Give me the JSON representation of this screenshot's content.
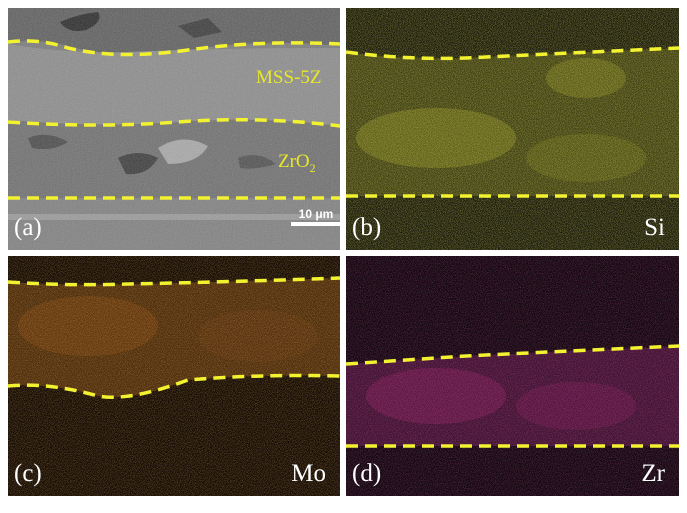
{
  "panels": {
    "a": {
      "label": "(a)",
      "layer_top": "MSS-5Z",
      "layer_bottom_base": "ZrO",
      "layer_bottom_sub": "2",
      "scale_bar": "10 μm"
    },
    "b": {
      "label": "(b)",
      "element": "Si",
      "map_color": "#c8c82a"
    },
    "c": {
      "label": "(c)",
      "element": "Mo",
      "map_color": "#d27a1e"
    },
    "d": {
      "label": "(d)",
      "element": "Zr",
      "map_color": "#c8287a"
    }
  },
  "boundary_color": "#f2f230"
}
